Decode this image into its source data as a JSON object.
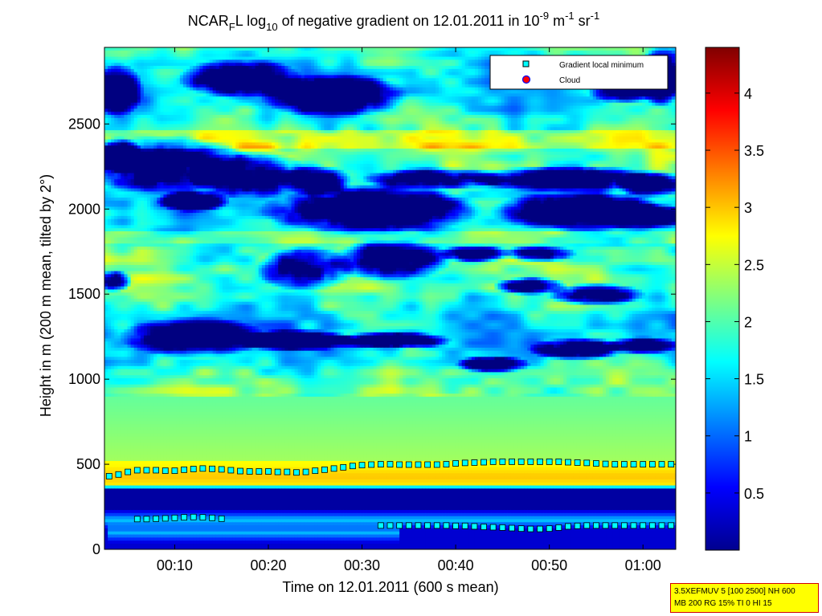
{
  "chart_data": {
    "type": "heatmap",
    "title": {
      "prefix": "NCAR",
      "sub1": "F",
      "mid1": "L log",
      "sub2": "10",
      "mid2": " of negative gradient on 12.01.2011 in 10",
      "sup1": "-9",
      "mid3": " m",
      "sup2": "-1",
      "mid4": " sr",
      "sup3": "-1"
    },
    "xlabel": "Time on 12.01.2011 (600 s mean)",
    "ylabel": "Height in m (200 m mean, tilted by 2°)",
    "x_range_min": [
      2.5,
      63.5
    ],
    "ylim": [
      0,
      2950
    ],
    "x_ticks": [
      {
        "t": 10,
        "label": "00:10"
      },
      {
        "t": 20,
        "label": "00:20"
      },
      {
        "t": 30,
        "label": "00:30"
      },
      {
        "t": 40,
        "label": "00:40"
      },
      {
        "t": 50,
        "label": "00:50"
      },
      {
        "t": 60,
        "label": "01:00"
      }
    ],
    "y_ticks": [
      0,
      500,
      1000,
      1500,
      2000,
      2500
    ],
    "colorbar": {
      "min": 0,
      "max": 4.4,
      "ticks": [
        "0.5",
        "1",
        "1.5",
        "2",
        "2.5",
        "3",
        "3.5",
        "4"
      ],
      "colormap": "jet"
    },
    "legend": {
      "position": "top-right",
      "entries": [
        {
          "label": "Gradient local minimum",
          "marker": "square",
          "color": "#00ffff"
        },
        {
          "label": "Cloud",
          "marker": "circle",
          "color": "#ff0000"
        }
      ]
    },
    "series": [
      {
        "name": "Gradient local minimum",
        "points": [
          [
            3.0,
            430
          ],
          [
            4.0,
            440
          ],
          [
            5.0,
            455
          ],
          [
            6.0,
            465
          ],
          [
            7.0,
            465
          ],
          [
            8.0,
            465
          ],
          [
            9.0,
            462
          ],
          [
            10.0,
            462
          ],
          [
            11.0,
            468
          ],
          [
            12.0,
            472
          ],
          [
            13.0,
            475
          ],
          [
            14.0,
            473
          ],
          [
            15.0,
            470
          ],
          [
            16.0,
            465
          ],
          [
            17.0,
            460
          ],
          [
            18.0,
            458
          ],
          [
            19.0,
            458
          ],
          [
            20.0,
            458
          ],
          [
            21.0,
            455
          ],
          [
            22.0,
            455
          ],
          [
            23.0,
            452
          ],
          [
            24.0,
            455
          ],
          [
            25.0,
            462
          ],
          [
            26.0,
            468
          ],
          [
            27.0,
            475
          ],
          [
            28.0,
            482
          ],
          [
            29.0,
            490
          ],
          [
            30.0,
            495
          ],
          [
            31.0,
            498
          ],
          [
            32.0,
            500
          ],
          [
            33.0,
            500
          ],
          [
            34.0,
            498
          ],
          [
            35.0,
            498
          ],
          [
            36.0,
            498
          ],
          [
            37.0,
            498
          ],
          [
            38.0,
            498
          ],
          [
            39.0,
            500
          ],
          [
            40.0,
            505
          ],
          [
            41.0,
            508
          ],
          [
            42.0,
            510
          ],
          [
            43.0,
            512
          ],
          [
            44.0,
            515
          ],
          [
            45.0,
            515
          ],
          [
            46.0,
            515
          ],
          [
            47.0,
            515
          ],
          [
            48.0,
            515
          ],
          [
            49.0,
            515
          ],
          [
            50.0,
            515
          ],
          [
            51.0,
            515
          ],
          [
            52.0,
            512
          ],
          [
            53.0,
            510
          ],
          [
            54.0,
            508
          ],
          [
            55.0,
            505
          ],
          [
            56.0,
            502
          ],
          [
            57.0,
            500
          ],
          [
            58.0,
            500
          ],
          [
            59.0,
            500
          ],
          [
            60.0,
            500
          ],
          [
            61.0,
            500
          ],
          [
            62.0,
            500
          ],
          [
            63.0,
            500
          ],
          [
            6.0,
            178
          ],
          [
            7.0,
            178
          ],
          [
            8.0,
            180
          ],
          [
            9.0,
            182
          ],
          [
            10.0,
            185
          ],
          [
            11.0,
            188
          ],
          [
            12.0,
            190
          ],
          [
            13.0,
            188
          ],
          [
            14.0,
            185
          ],
          [
            15.0,
            180
          ],
          [
            32.0,
            140
          ],
          [
            33.0,
            140
          ],
          [
            34.0,
            140
          ],
          [
            35.0,
            140
          ],
          [
            36.0,
            140
          ],
          [
            37.0,
            140
          ],
          [
            38.0,
            140
          ],
          [
            39.0,
            140
          ],
          [
            40.0,
            138
          ],
          [
            41.0,
            138
          ],
          [
            42.0,
            135
          ],
          [
            43.0,
            132
          ],
          [
            44.0,
            130
          ],
          [
            45.0,
            128
          ],
          [
            46.0,
            125
          ],
          [
            47.0,
            122
          ],
          [
            48.0,
            120
          ],
          [
            49.0,
            120
          ],
          [
            50.0,
            122
          ],
          [
            51.0,
            128
          ],
          [
            52.0,
            135
          ],
          [
            53.0,
            138
          ],
          [
            54.0,
            140
          ],
          [
            55.0,
            140
          ],
          [
            56.0,
            140
          ],
          [
            57.0,
            140
          ],
          [
            58.0,
            140
          ],
          [
            59.0,
            140
          ],
          [
            60.0,
            140
          ],
          [
            61.0,
            140
          ],
          [
            62.0,
            140
          ],
          [
            63.0,
            140
          ]
        ]
      },
      {
        "name": "Cloud",
        "points": []
      }
    ]
  },
  "info_box": {
    "line1": "3.5XEFMUV 5 [100 2500] NH 600",
    "line2": "MB 200 RG 15% TI 0 HI 15"
  }
}
